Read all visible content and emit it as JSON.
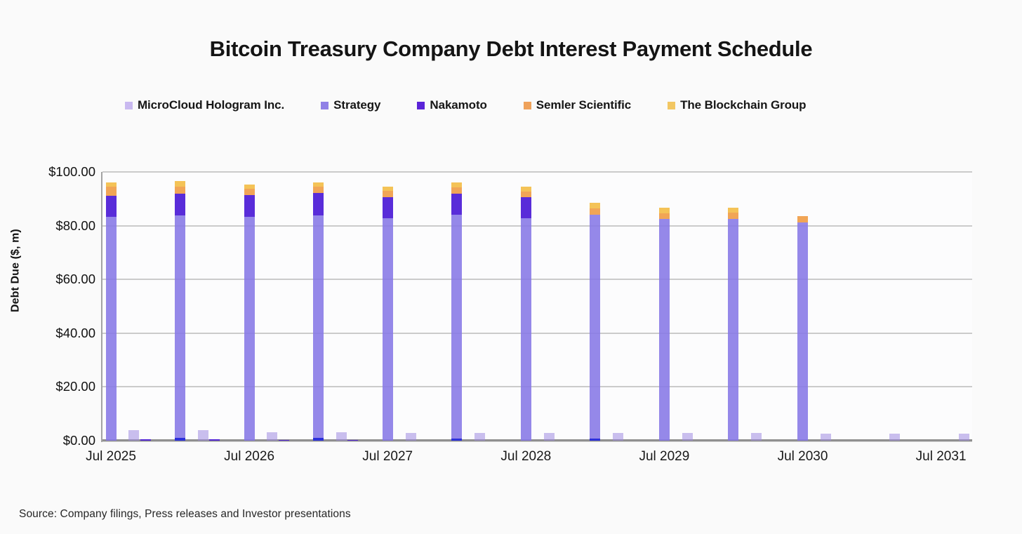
{
  "header": {
    "title": "Bitcoin Treasury Company Debt Interest Payment Schedule"
  },
  "source": {
    "text": "Source: Company filings, Press releases and Investor presentations"
  },
  "chart_data": {
    "type": "bar",
    "variant": "stacked-monthly-timeseries",
    "title": "Bitcoin Treasury Company Debt Interest Payment Schedule",
    "xlabel": "",
    "ylabel": "Debt Due ($, m)",
    "unit": "$ millions",
    "ylim": [
      0,
      100
    ],
    "ytick_step": 20,
    "ytick_labels": [
      "$0.00",
      "$20.00",
      "$40.00",
      "$60.00",
      "$80.00",
      "$100.00"
    ],
    "grid": "horizontal",
    "legend_position": "top",
    "series": [
      {
        "name": "MicroCloud Hologram Inc.",
        "color": "rgba(159,138,226,0.55)",
        "swatch": "#c9b9f0"
      },
      {
        "name": "Strategy",
        "color": "rgba(134,119,230,0.88)",
        "swatch": "#9181e6"
      },
      {
        "name": "Nakamoto",
        "color": "rgba(80,33,215,0.95)",
        "swatch": "#5a23d8"
      },
      {
        "name": "Semler Scientific",
        "color": "rgba(240,160,77,0.95)",
        "swatch": "#efa25b"
      },
      {
        "name": "The Blockchain Group",
        "color": "rgba(243,192,78,0.95)",
        "swatch": "#f2c763"
      }
    ],
    "xtick_labels": [
      {
        "label": "Jul 2025",
        "month": 0
      },
      {
        "label": "Jul 2026",
        "month": 12
      },
      {
        "label": "Jul 2027",
        "month": 24
      },
      {
        "label": "Jul 2028",
        "month": 36
      },
      {
        "label": "Jul 2029",
        "month": 48
      },
      {
        "label": "Jul 2030",
        "month": 60
      },
      {
        "label": "Jul 2031",
        "month": 72
      }
    ],
    "bars": [
      {
        "date": "Jul 2025",
        "month": 0,
        "segments": [
          {
            "series": "Strategy",
            "value": 83.4
          },
          {
            "series": "Nakamoto",
            "value": 7.6
          },
          {
            "series": "Semler Scientific",
            "value": 3.4
          },
          {
            "series": "The Blockchain Group",
            "value": 1.8
          }
        ]
      },
      {
        "date": "Sep 2025",
        "month": 2,
        "segments": [
          {
            "series": "MicroCloud Hologram Inc.",
            "value": 3.9
          }
        ]
      },
      {
        "date": "Oct 2025",
        "month": 3,
        "segments": [
          {
            "series": "Nakamoto",
            "value": 0.5
          }
        ]
      },
      {
        "date": "Jan 2026",
        "month": 6,
        "segments": [
          {
            "series": "Nakamoto",
            "value": 1.0,
            "color": "#2c30db"
          },
          {
            "series": "Strategy",
            "value": 82.9
          },
          {
            "series": "Nakamoto",
            "value": 8.0
          },
          {
            "series": "Semler Scientific",
            "value": 2.6
          },
          {
            "series": "The Blockchain Group",
            "value": 2.2
          }
        ]
      },
      {
        "date": "Mar 2026",
        "month": 8,
        "segments": [
          {
            "series": "MicroCloud Hologram Inc.",
            "value": 3.9
          }
        ]
      },
      {
        "date": "Apr 2026",
        "month": 9,
        "segments": [
          {
            "series": "Nakamoto",
            "value": 0.4
          }
        ]
      },
      {
        "date": "Jul 2026",
        "month": 12,
        "segments": [
          {
            "series": "Strategy",
            "value": 83.4
          },
          {
            "series": "Nakamoto",
            "value": 7.9
          },
          {
            "series": "Semler Scientific",
            "value": 2.4
          },
          {
            "series": "The Blockchain Group",
            "value": 1.6
          }
        ]
      },
      {
        "date": "Sep 2026",
        "month": 14,
        "segments": [
          {
            "series": "MicroCloud Hologram Inc.",
            "value": 3.1
          }
        ]
      },
      {
        "date": "Oct 2026",
        "month": 15,
        "segments": [
          {
            "series": "Nakamoto",
            "value": 0.35
          }
        ]
      },
      {
        "date": "Jan 2027",
        "month": 18,
        "segments": [
          {
            "series": "Nakamoto",
            "value": 1.0,
            "color": "#2c30db"
          },
          {
            "series": "Strategy",
            "value": 82.9
          },
          {
            "series": "Nakamoto",
            "value": 8.3
          },
          {
            "series": "Semler Scientific",
            "value": 2.3
          },
          {
            "series": "The Blockchain Group",
            "value": 1.7
          }
        ]
      },
      {
        "date": "Mar 2027",
        "month": 20,
        "segments": [
          {
            "series": "MicroCloud Hologram Inc.",
            "value": 3.1
          }
        ]
      },
      {
        "date": "Apr 2027",
        "month": 21,
        "segments": [
          {
            "series": "Nakamoto",
            "value": 0.3
          }
        ]
      },
      {
        "date": "Jul 2027",
        "month": 24,
        "segments": [
          {
            "series": "Strategy",
            "value": 82.9
          },
          {
            "series": "Nakamoto",
            "value": 7.6
          },
          {
            "series": "Semler Scientific",
            "value": 2.4
          },
          {
            "series": "The Blockchain Group",
            "value": 1.6
          }
        ]
      },
      {
        "date": "Sep 2027",
        "month": 26,
        "segments": [
          {
            "series": "MicroCloud Hologram Inc.",
            "value": 2.9
          }
        ]
      },
      {
        "date": "Jan 2028",
        "month": 30,
        "segments": [
          {
            "series": "Nakamoto",
            "value": 0.8,
            "color": "#2c30db"
          },
          {
            "series": "Strategy",
            "value": 83.2
          },
          {
            "series": "Nakamoto",
            "value": 7.8
          },
          {
            "series": "Semler Scientific",
            "value": 2.4
          },
          {
            "series": "The Blockchain Group",
            "value": 1.8
          }
        ]
      },
      {
        "date": "Mar 2028",
        "month": 32,
        "segments": [
          {
            "series": "MicroCloud Hologram Inc.",
            "value": 2.9
          }
        ]
      },
      {
        "date": "Jul 2028",
        "month": 36,
        "segments": [
          {
            "series": "Strategy",
            "value": 82.9
          },
          {
            "series": "Nakamoto",
            "value": 7.6
          },
          {
            "series": "Semler Scientific",
            "value": 2.3
          },
          {
            "series": "The Blockchain Group",
            "value": 1.6
          }
        ]
      },
      {
        "date": "Sep 2028",
        "month": 38,
        "segments": [
          {
            "series": "MicroCloud Hologram Inc.",
            "value": 2.9
          }
        ]
      },
      {
        "date": "Jan 2029",
        "month": 42,
        "segments": [
          {
            "series": "Nakamoto",
            "value": 0.7,
            "color": "#2c30db"
          },
          {
            "series": "Strategy",
            "value": 83.5
          },
          {
            "series": "Semler Scientific",
            "value": 2.3
          },
          {
            "series": "The Blockchain Group",
            "value": 1.9
          }
        ]
      },
      {
        "date": "Mar 2029",
        "month": 44,
        "segments": [
          {
            "series": "MicroCloud Hologram Inc.",
            "value": 2.9
          }
        ]
      },
      {
        "date": "Jul 2029",
        "month": 48,
        "segments": [
          {
            "series": "Strategy",
            "value": 82.6
          },
          {
            "series": "Semler Scientific",
            "value": 2.1
          },
          {
            "series": "The Blockchain Group",
            "value": 2.1
          }
        ]
      },
      {
        "date": "Sep 2029",
        "month": 50,
        "segments": [
          {
            "series": "MicroCloud Hologram Inc.",
            "value": 2.8
          }
        ]
      },
      {
        "date": "Jan 2030",
        "month": 54,
        "segments": [
          {
            "series": "Strategy",
            "value": 82.6
          },
          {
            "series": "Semler Scientific",
            "value": 2.2
          },
          {
            "series": "The Blockchain Group",
            "value": 2.0
          }
        ]
      },
      {
        "date": "Mar 2030",
        "month": 56,
        "segments": [
          {
            "series": "MicroCloud Hologram Inc.",
            "value": 2.8
          }
        ]
      },
      {
        "date": "Jul 2030",
        "month": 60,
        "segments": [
          {
            "series": "Strategy",
            "value": 81.3
          },
          {
            "series": "Semler Scientific",
            "value": 2.2
          }
        ]
      },
      {
        "date": "Sep 2030",
        "month": 62,
        "segments": [
          {
            "series": "MicroCloud Hologram Inc.",
            "value": 2.6
          }
        ]
      },
      {
        "date": "Mar 2031",
        "month": 68,
        "segments": [
          {
            "series": "MicroCloud Hologram Inc.",
            "value": 2.6
          }
        ]
      },
      {
        "date": "Sep 2031",
        "month": 74,
        "segments": [
          {
            "series": "MicroCloud Hologram Inc.",
            "value": 2.6
          }
        ]
      }
    ]
  }
}
